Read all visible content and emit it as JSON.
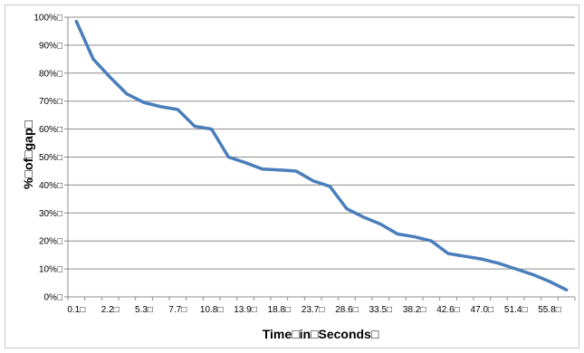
{
  "chart_data": {
    "type": "line",
    "title": "",
    "xlabel": "Time□in□Seconds□",
    "ylabel": "%□of□gap□",
    "ylim": [
      0,
      100
    ],
    "y_ticks": [
      "0%□",
      "10%□",
      "20%□",
      "30%□",
      "40%□",
      "50%□",
      "60%□",
      "70%□",
      "80%□",
      "90%□",
      "100%□"
    ],
    "x_ticks": [
      "0.1□",
      "2.2□",
      "5.3□",
      "7.7□",
      "10.8□",
      "13.9□",
      "18.8□",
      "23.7□",
      "28.6□",
      "33.5□",
      "38.2□",
      "42.6□",
      "47.0□",
      "51.4□",
      "55.8□"
    ],
    "grid": true,
    "legend": "none",
    "colors": {
      "line": "#4a7ebb",
      "grid": "#8c8c8c",
      "axis": "#8c8c8c"
    },
    "series": [
      {
        "values": [
          98.5,
          85,
          78.5,
          72.5,
          69.5,
          68,
          67,
          61,
          60,
          50,
          48,
          45.7,
          45.4,
          45,
          41.5,
          39.5,
          31.5,
          28.5,
          26,
          22.5,
          21.5,
          20,
          15.5,
          14.5,
          13.5,
          12,
          10,
          8,
          5.5,
          2.5
        ]
      }
    ]
  }
}
